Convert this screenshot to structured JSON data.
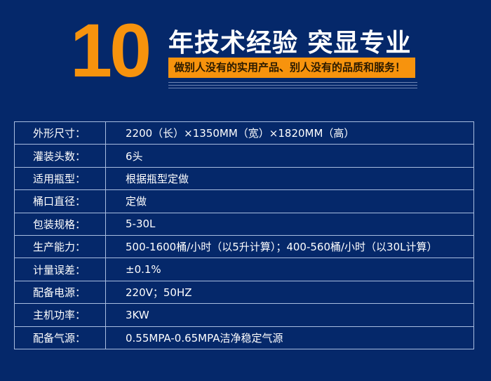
{
  "banner": {
    "number": "10",
    "headline": "年技术经验 突显专业",
    "slogan": "做别人没有的实用产品、别人没有的品质和服务！",
    "accent": "#f7930d"
  },
  "specs": [
    {
      "label": "外形尺寸：",
      "value": "2200（长）×1350MM（宽）×1820MM（高）"
    },
    {
      "label": "灌装头数：",
      "value": "6头"
    },
    {
      "label": "适用瓶型：",
      "value": "根据瓶型定做"
    },
    {
      "label": "桶口直径：",
      "value": "定做"
    },
    {
      "label": "包装规格：",
      "value": "5-30L"
    },
    {
      "label": "生产能力：",
      "value": "500-1600桶/小时（以5升计算）；400-560桶/小时（以30L计算）"
    },
    {
      "label": "计量误差：",
      "value": "±0.1%"
    },
    {
      "label": "配备电源：",
      "value": "220V；50HZ"
    },
    {
      "label": "主机功率：",
      "value": "3KW"
    },
    {
      "label": "配备气源：",
      "value": "0.55MPA-0.65MPA洁净稳定气源"
    }
  ]
}
